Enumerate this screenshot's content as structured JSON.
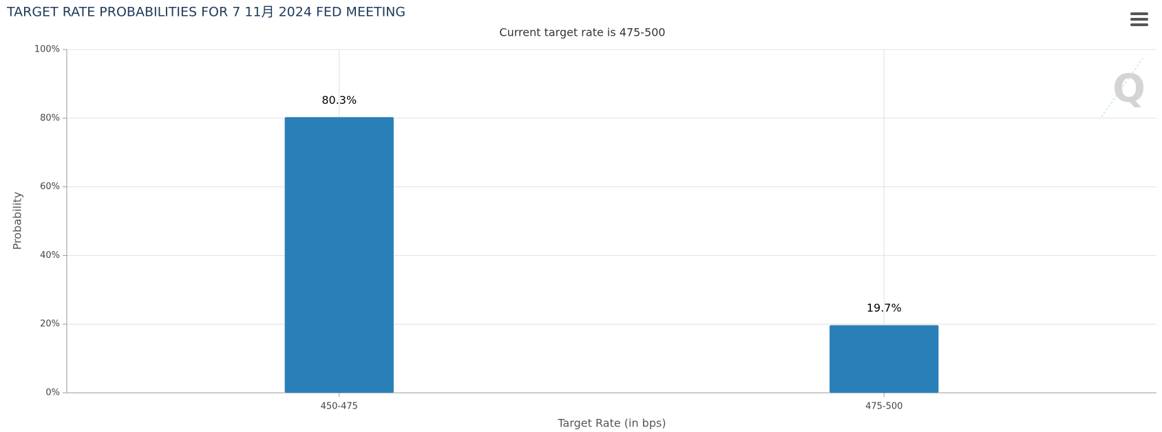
{
  "chart_data": {
    "type": "bar",
    "title": "TARGET RATE PROBABILITIES FOR 7 11月 2024 FED MEETING",
    "subtitle": "Current target rate is 475-500",
    "x_label": "Target Rate (in bps)",
    "y_label": "Probability",
    "categories": [
      "450-475",
      "475-500"
    ],
    "values": [
      80.3,
      19.7
    ],
    "value_labels": [
      "80.3%",
      "19.7%"
    ],
    "color": "#2980b9",
    "ylim": [
      0,
      100
    ],
    "yticks": [
      {
        "value": 0,
        "label": "0%"
      },
      {
        "value": 20,
        "label": "20%"
      },
      {
        "value": 40,
        "label": "40%"
      },
      {
        "value": 60,
        "label": "60%"
      },
      {
        "value": 80,
        "label": "80%"
      },
      {
        "value": 100,
        "label": "100%"
      }
    ],
    "grid": true
  }
}
